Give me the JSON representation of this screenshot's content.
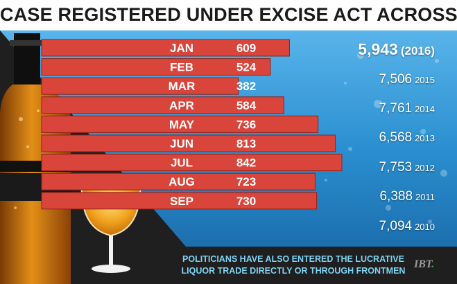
{
  "chart_data": {
    "type": "bar",
    "orientation": "horizontal",
    "title": "CASE REGISTERED UNDER EXCISE ACT ACROSS STATE",
    "categories": [
      "JAN",
      "FEB",
      "MAR",
      "APR",
      "MAY",
      "JUN",
      "JUL",
      "AUG",
      "SEP"
    ],
    "values": [
      609,
      524,
      382,
      584,
      736,
      813,
      842,
      723,
      730
    ],
    "xlim": [
      0,
      842
    ],
    "bar_color": "#d9453a",
    "yearly_totals": [
      {
        "value": "5,943",
        "label": "(2016)"
      },
      {
        "value": "7,506",
        "label": "2015"
      },
      {
        "value": "7,761",
        "label": "2014"
      },
      {
        "value": "6,568",
        "label": "2013"
      },
      {
        "value": "7,753",
        "label": "2012"
      },
      {
        "value": "6,388",
        "label": "2011"
      },
      {
        "value": "7,094",
        "label": "2010"
      }
    ]
  },
  "footnote": {
    "line1": "POLITICIANS HAVE ALSO ENTERED THE LUCRATIVE",
    "line2": "LIQUOR TRADE DIRECTLY OR THROUGH FRONTMEN"
  },
  "source": {
    "logo_text": "IBT"
  },
  "colors": {
    "water": "#2a8fd0",
    "dark": "#1f1f1f",
    "accent_text": "#7fd3f5"
  }
}
